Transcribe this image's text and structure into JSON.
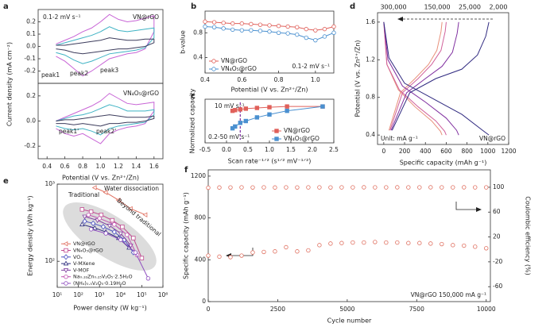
{
  "chart_data": [
    {
      "type": "line",
      "label": "a",
      "ylabel": "Current density (mA cm⁻²)",
      "xlim": [
        0.3,
        1.7
      ],
      "ylim": [
        -0.3,
        0.3
      ],
      "yticks": [
        -0.2,
        -0.1,
        {
          "value": 0,
          "label": "0.0"
        },
        0.1,
        0.2
      ],
      "x": [
        0.5,
        0.6,
        0.7,
        0.8,
        0.9,
        1.0,
        1.1,
        1.2,
        1.3,
        1.4,
        1.5,
        1.6,
        1.6,
        1.5,
        1.4,
        1.3,
        1.2,
        1.1,
        1.0,
        0.9,
        0.8,
        0.7,
        0.6,
        0.5
      ],
      "series": [
        {
          "color": "#c865d6",
          "values": [
            0.02,
            0.05,
            0.08,
            0.12,
            0.15,
            0.2,
            0.26,
            0.22,
            0.2,
            0.21,
            0.23,
            0.25,
            0.12,
            -0.02,
            -0.05,
            -0.06,
            -0.08,
            -0.1,
            -0.15,
            -0.2,
            -0.24,
            -0.18,
            -0.12,
            -0.08
          ]
        },
        {
          "color": "#3fb3c4",
          "values": [
            0.01,
            0.03,
            0.05,
            0.07,
            0.09,
            0.12,
            0.16,
            0.13,
            0.12,
            0.13,
            0.14,
            0.15,
            0.07,
            -0.01,
            -0.03,
            -0.04,
            -0.05,
            -0.06,
            -0.09,
            -0.12,
            -0.14,
            -0.11,
            -0.07,
            -0.05
          ]
        },
        {
          "color": "#3c3c5c",
          "values": [
            0.01,
            0.01,
            0.02,
            0.03,
            0.04,
            0.05,
            0.07,
            0.06,
            0.05,
            0.05,
            0.06,
            0.06,
            0.03,
            0,
            -0.01,
            -0.02,
            -0.02,
            -0.03,
            -0.04,
            -0.05,
            -0.06,
            -0.05,
            -0.03,
            -0.02
          ]
        }
      ],
      "annotations": [
        "0.1-2 mV s⁻¹",
        "VN@rGO",
        "peak1",
        "peak2",
        "peak3"
      ]
    },
    {
      "type": "line",
      "xlabel": "Potential (V vs. Zn²⁺/Zn)",
      "xlim": [
        0.3,
        1.7
      ],
      "ylim": [
        -0.3,
        0.3
      ],
      "xticks": [
        0.4,
        0.6,
        0.8,
        {
          "value": 1,
          "label": "1.0"
        },
        1.2,
        1.4,
        1.6
      ],
      "yticks": [
        -0.2,
        {
          "value": 0,
          "label": "0.0"
        },
        0.2
      ],
      "x": [
        0.5,
        0.6,
        0.7,
        0.8,
        0.9,
        1.0,
        1.1,
        1.2,
        1.3,
        1.4,
        1.5,
        1.6,
        1.6,
        1.5,
        1.4,
        1.3,
        1.2,
        1.1,
        1.0,
        0.9,
        0.8,
        0.7,
        0.6,
        0.5
      ],
      "series": [
        {
          "color": "#c865d6",
          "values": [
            0,
            0.03,
            0.06,
            0.09,
            0.12,
            0.16,
            0.22,
            0.18,
            0.14,
            0.13,
            0.14,
            0.15,
            0.08,
            -0.02,
            -0.04,
            -0.05,
            -0.07,
            -0.1,
            -0.18,
            -0.14,
            -0.1,
            -0.12,
            -0.1,
            -0.06
          ]
        },
        {
          "color": "#3fb3c4",
          "values": [
            0,
            0.02,
            0.04,
            0.05,
            0.07,
            0.1,
            0.13,
            0.11,
            0.08,
            0.08,
            0.08,
            0.09,
            0.05,
            -0.01,
            -0.02,
            -0.03,
            -0.04,
            -0.06,
            -0.11,
            -0.08,
            -0.06,
            -0.07,
            -0.06,
            -0.04
          ]
        },
        {
          "color": "#3c3c5c",
          "values": [
            0,
            0.01,
            0.01,
            0.02,
            0.03,
            0.04,
            0.05,
            0.04,
            0.03,
            0.03,
            0.03,
            0.04,
            0.02,
            0,
            -0.01,
            -0.01,
            -0.02,
            -0.02,
            -0.04,
            -0.03,
            -0.02,
            -0.03,
            -0.02,
            -0.02
          ]
        }
      ],
      "annotations": [
        "VN₄O₅@rGO",
        "peak1'",
        "peak2'"
      ]
    },
    {
      "type": "line",
      "label": "b",
      "xlabel": "Potential (V vs. Zn²⁺/Zn)",
      "ylabel": "b-value",
      "xlim": [
        0.4,
        1.1
      ],
      "ylim": [
        0.15,
        1.15
      ],
      "xticks": [
        0.4,
        0.6,
        0.8,
        {
          "value": 1,
          "label": "1.0"
        }
      ],
      "yticks": [
        0.4,
        0.8
      ],
      "x": [
        0.4,
        0.45,
        0.5,
        0.55,
        0.6,
        0.65,
        0.7,
        0.75,
        0.8,
        0.85,
        0.9,
        0.95,
        1.0,
        1.05,
        1.1
      ],
      "series": [
        {
          "name": "VN@rGO",
          "color": "#e0605a",
          "marker": "circle",
          "values": [
            0.98,
            0.97,
            0.96,
            0.95,
            0.95,
            0.94,
            0.93,
            0.92,
            0.91,
            0.9,
            0.89,
            0.86,
            0.84,
            0.86,
            0.9
          ]
        },
        {
          "name": "VN₄O₅@rGO",
          "color": "#4a90d0",
          "marker": "circle",
          "values": [
            0.9,
            0.89,
            0.87,
            0.85,
            0.84,
            0.84,
            0.83,
            0.82,
            0.8,
            0.79,
            0.77,
            0.72,
            0.68,
            0.74,
            0.8
          ]
        }
      ],
      "legend": "lower left",
      "annotations": [
        "0.1-2 mV s⁻¹"
      ]
    },
    {
      "type": "line",
      "label": "c",
      "xlabel": "Scan rate⁻¹ᐟ² (s¹ᐟ² mV⁻¹ᐟ²)",
      "ylabel": "Normalized capacity",
      "xlim": [
        -0.5,
        2.5
      ],
      "ylim": [
        0,
        1.2
      ],
      "xticks": [
        -0.5,
        {
          "value": 0,
          "label": "0.0"
        },
        0.5,
        {
          "value": 1,
          "label": "1.0"
        },
        1.5,
        {
          "value": 2,
          "label": "2.0"
        },
        2.5
      ],
      "x": [
        0.14,
        0.2,
        0.32,
        0.45,
        0.71,
        1.0,
        1.41,
        2.24
      ],
      "vline": 0.32,
      "series": [
        {
          "name": "VN@rGO",
          "color": "#e0605a",
          "marker": "square",
          "filled": true,
          "values": [
            0.88,
            0.9,
            0.92,
            0.94,
            0.96,
            0.98,
            1.0,
            1.0
          ]
        },
        {
          "name": "VN₄O₅@rGO",
          "color": "#4a90d0",
          "marker": "square",
          "filled": true,
          "values": [
            0.4,
            0.45,
            0.55,
            0.6,
            0.7,
            0.78,
            0.88,
            1.0
          ]
        }
      ],
      "legend": "lower right",
      "annotations": [
        "10 mV s⁻¹",
        "0.2-50 mV s⁻¹"
      ]
    },
    {
      "type": "line",
      "label": "d",
      "xlabel": "Specific capacity (mAh g⁻¹)",
      "ylabel": "Potential (V vs. Zn²⁺/Zn)",
      "xlim": [
        -60,
        1200
      ],
      "ylim": [
        0.3,
        1.7
      ],
      "xticks": [
        0,
        200,
        400,
        600,
        800,
        1000,
        1200
      ],
      "yticks": [
        0.4,
        0.8,
        1.2,
        1.6
      ],
      "series": [
        {
          "name": "300,000",
          "color": "#e8907a",
          "x": [
            0,
            30,
            140,
            300,
            460,
            545,
            560,
            null,
            50,
            160,
            300,
            430,
            510,
            550,
            560
          ],
          "values": [
            1.6,
            1.15,
            0.88,
            0.7,
            0.55,
            0.44,
            0.4,
            null,
            0.45,
            0.85,
            1.0,
            1.15,
            1.3,
            1.5,
            1.6
          ]
        },
        {
          "name": "150,000",
          "color": "#d0609a",
          "x": [
            0,
            30,
            150,
            330,
            500,
            585,
            600,
            null,
            60,
            180,
            330,
            460,
            550,
            590,
            600
          ],
          "values": [
            1.6,
            1.15,
            0.88,
            0.7,
            0.55,
            0.44,
            0.4,
            null,
            0.45,
            0.85,
            1.0,
            1.15,
            1.3,
            1.5,
            1.6
          ]
        },
        {
          "name": "25,000",
          "color": "#8030a0",
          "x": [
            0,
            40,
            180,
            400,
            600,
            700,
            720,
            null,
            70,
            220,
            400,
            560,
            660,
            705,
            720
          ],
          "values": [
            1.6,
            1.2,
            0.92,
            0.75,
            0.58,
            0.45,
            0.4,
            null,
            0.45,
            0.85,
            1.0,
            1.13,
            1.28,
            1.48,
            1.6
          ]
        },
        {
          "name": "2,000",
          "color": "#302a80",
          "x": [
            0,
            50,
            200,
            450,
            750,
            950,
            1010,
            null,
            80,
            250,
            500,
            750,
            900,
            980,
            1010
          ],
          "values": [
            1.6,
            1.22,
            0.95,
            0.8,
            0.62,
            0.45,
            0.4,
            null,
            0.45,
            0.85,
            1.0,
            1.1,
            1.25,
            1.45,
            1.6
          ]
        }
      ],
      "legend": "above",
      "annotations": [
        "Unit: mA g⁻¹",
        "VN@rGO"
      ]
    },
    {
      "type": "line",
      "label": "e",
      "xlabel": "Power density (W kg⁻¹)",
      "ylabel": "Energy density (Wh kg⁻¹)",
      "xlog": true,
      "ylog": true,
      "xlim": [
        10,
        1000000
      ],
      "ylim": [
        46,
        1000
      ],
      "xticks": [
        {
          "value": 10,
          "label": "10¹"
        },
        {
          "value": 100,
          "label": "10²"
        },
        {
          "value": 1000,
          "label": "10³"
        },
        {
          "value": 10000,
          "label": "10⁴"
        },
        {
          "value": 100000,
          "label": "10⁵"
        },
        {
          "value": 1000000,
          "label": "10⁶"
        }
      ],
      "yticks": [
        {
          "value": 100,
          "label": "10²"
        },
        {
          "value": 1000,
          "label": "10³"
        }
      ],
      "series": [
        {
          "name": "VN@rGO",
          "color": "#e07060",
          "marker": "triangle-left",
          "x": [
            600,
            2000,
            8000,
            30000,
            150000
          ],
          "values": [
            900,
            780,
            620,
            480,
            400
          ]
        },
        {
          "name": "VN₄O₅@rGO",
          "color": "#c04a90",
          "marker": "square",
          "x": [
            150,
            400,
            1200,
            4000,
            12000,
            40000,
            100000
          ],
          "values": [
            470,
            440,
            400,
            340,
            280,
            200,
            110
          ]
        },
        {
          "name": "VOₓ",
          "color": "#4a50c0",
          "marker": "diamond",
          "x": [
            200,
            500,
            1500,
            5000,
            15000,
            40000
          ],
          "values": [
            330,
            310,
            280,
            240,
            190,
            130
          ]
        },
        {
          "name": "V-MXene",
          "color": "#303080",
          "marker": "triangle",
          "x": [
            150,
            600,
            2000,
            8000,
            25000
          ],
          "values": [
            300,
            270,
            240,
            200,
            150
          ]
        },
        {
          "name": "V-MOF",
          "color": "#8040a0",
          "marker": "triangle-down",
          "x": [
            200,
            800,
            3000,
            10000,
            30000
          ],
          "values": [
            380,
            340,
            290,
            230,
            160
          ]
        },
        {
          "name": "Na₀.₃₃Zn₀.₂₅V₂O₅·2.5H₂O",
          "color": "#c050b0",
          "marker": "circle",
          "x": [
            300,
            1000,
            5000,
            20000,
            60000
          ],
          "values": [
            400,
            360,
            300,
            220,
            120
          ]
        },
        {
          "name": "(NH₄)₀.₅V₂O₅·0.19H₂O",
          "color": "#9050c0",
          "marker": "circle",
          "x": [
            400,
            2000,
            10000,
            50000,
            200000
          ],
          "values": [
            260,
            230,
            190,
            130,
            60
          ]
        }
      ],
      "legend": "lower left",
      "annotations": [
        "Traditional",
        "Water dissociation",
        "Beyond traditional"
      ]
    },
    {
      "type": "scatter",
      "label": "f",
      "xlabel": "Cycle number",
      "ylabel": "Specific capacity (mAh g⁻¹)",
      "y2label": "Coulombic efficiency (%)",
      "xlim": [
        0,
        10150
      ],
      "ylim": [
        0,
        1260
      ],
      "y2lim": [
        -84,
        128
      ],
      "xticks": [
        0,
        2500,
        5000,
        7500,
        10000
      ],
      "yticks": [
        0,
        400,
        800,
        1200
      ],
      "y2ticks": [
        -60,
        -20,
        20,
        60,
        100
      ],
      "x": [
        0,
        400,
        800,
        1200,
        1600,
        2000,
        2400,
        2800,
        3200,
        3600,
        4000,
        4400,
        4800,
        5200,
        5600,
        6000,
        6400,
        6800,
        7200,
        7600,
        8000,
        8400,
        8800,
        9200,
        9600,
        10000
      ],
      "series": [
        {
          "color": "#e07060",
          "marker": "circle",
          "values": [
            440,
            430,
            425,
            440,
            470,
            475,
            480,
            520,
            480,
            490,
            540,
            555,
            560,
            565,
            565,
            570,
            565,
            565,
            560,
            560,
            555,
            550,
            540,
            535,
            525,
            510
          ]
        },
        {
          "color": "#e07060",
          "marker": "circle",
          "axis": "y2",
          "values": [
            99.2,
            99.6,
            99.7,
            99.8,
            99.7,
            99.8,
            99.6,
            99.8,
            99.7,
            99.8,
            99.8,
            99.7,
            99.8,
            99.8,
            99.9,
            99.8,
            99.8,
            99.9,
            99.8,
            99.8,
            99.9,
            99.8,
            99.8,
            99.9,
            99.8,
            99.8
          ]
        }
      ],
      "annotations": [
        "VN@rGO 150,000 mA g⁻¹"
      ]
    }
  ]
}
